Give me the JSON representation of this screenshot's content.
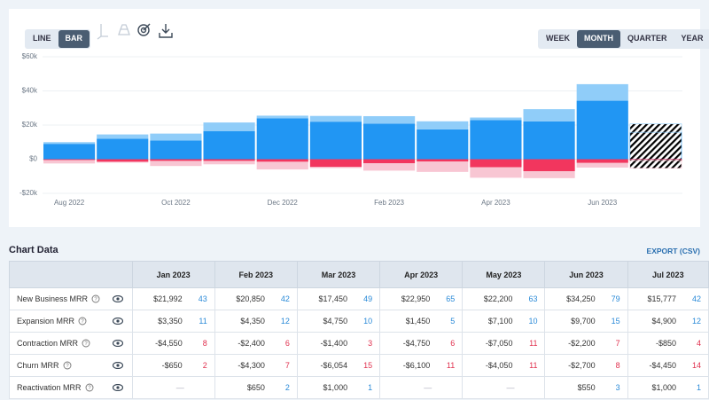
{
  "toolbar": {
    "chart_types": [
      "LINE",
      "BAR"
    ],
    "active_chart_type": 1,
    "periods": [
      "WEEK",
      "MONTH",
      "QUARTER",
      "YEAR"
    ],
    "active_period": 1
  },
  "chart_data": {
    "type": "bar",
    "stacked": true,
    "grid": true,
    "hatch_last": true,
    "categories": [
      "Aug 2022",
      null,
      "Oct 2022",
      null,
      "Dec 2022",
      null,
      "Feb 2023",
      null,
      "Apr 2023",
      null,
      "Jun 2023",
      null
    ],
    "series": [
      {
        "color": "#2196f3",
        "values": [
          9000,
          12000,
          11000,
          16500,
          24000,
          21992,
          20850,
          17450,
          22950,
          22200,
          34250,
          15777
        ]
      },
      {
        "color": "#90cdf9",
        "values": [
          1000,
          2500,
          4000,
          5000,
          1500,
          3350,
          4350,
          4750,
          1450,
          7100,
          9700,
          4900
        ]
      },
      {
        "color": "#f2365e",
        "values": [
          -500,
          -1500,
          -1000,
          -1000,
          -1500,
          -4550,
          -2400,
          -1400,
          -4750,
          -7050,
          -2200,
          -850
        ]
      },
      {
        "color": "#f8c6d3",
        "values": [
          -2000,
          -500,
          -3000,
          -2000,
          -4500,
          -650,
          -4300,
          -6054,
          -6100,
          -4050,
          -2700,
          -4450
        ]
      }
    ],
    "ylim": [
      -20000,
      60000
    ],
    "yticks": [
      {
        "value": -20000,
        "label": "-$20k"
      },
      {
        "value": 0,
        "label": "$0"
      },
      {
        "value": 20000,
        "label": "$20k"
      },
      {
        "value": 40000,
        "label": "$40k"
      },
      {
        "value": 60000,
        "label": "$60k"
      }
    ]
  },
  "table": {
    "title": "Chart Data",
    "export": "EXPORT (CSV)",
    "columns": [
      "Jan 2023",
      "Feb 2023",
      "Mar 2023",
      "Apr 2023",
      "May 2023",
      "Jun 2023",
      "Jul 2023"
    ],
    "rows": [
      {
        "name": "New Business MRR",
        "count_color": "#2a8ad8",
        "cells": [
          {
            "amount": "$21,992",
            "count": 43
          },
          {
            "amount": "$20,850",
            "count": 42
          },
          {
            "amount": "$17,450",
            "count": 49
          },
          {
            "amount": "$22,950",
            "count": 65
          },
          {
            "amount": "$22,200",
            "count": 63
          },
          {
            "amount": "$34,250",
            "count": 79
          },
          {
            "amount": "$15,777",
            "count": 42
          }
        ]
      },
      {
        "name": "Expansion MRR",
        "count_color": "#2a8ad8",
        "cells": [
          {
            "amount": "$3,350",
            "count": 11
          },
          {
            "amount": "$4,350",
            "count": 12
          },
          {
            "amount": "$4,750",
            "count": 10
          },
          {
            "amount": "$1,450",
            "count": 5
          },
          {
            "amount": "$7,100",
            "count": 10
          },
          {
            "amount": "$9,700",
            "count": 15
          },
          {
            "amount": "$4,900",
            "count": 12
          }
        ]
      },
      {
        "name": "Contraction MRR",
        "count_color": "#e0304e",
        "cells": [
          {
            "amount": "-$4,550",
            "count": 8
          },
          {
            "amount": "-$2,400",
            "count": 6
          },
          {
            "amount": "-$1,400",
            "count": 3
          },
          {
            "amount": "-$4,750",
            "count": 6
          },
          {
            "amount": "-$7,050",
            "count": 11
          },
          {
            "amount": "-$2,200",
            "count": 7
          },
          {
            "amount": "-$850",
            "count": 4
          }
        ]
      },
      {
        "name": "Churn MRR",
        "count_color": "#e0304e",
        "cells": [
          {
            "amount": "-$650",
            "count": 2
          },
          {
            "amount": "-$4,300",
            "count": 7
          },
          {
            "amount": "-$6,054",
            "count": 15
          },
          {
            "amount": "-$6,100",
            "count": 11
          },
          {
            "amount": "-$4,050",
            "count": 11
          },
          {
            "amount": "-$2,700",
            "count": 8
          },
          {
            "amount": "-$4,450",
            "count": 14
          }
        ]
      },
      {
        "name": "Reactivation MRR",
        "count_color": "#2a8ad8",
        "cells": [
          {
            "amount": "—"
          },
          {
            "amount": "$650",
            "count": 2
          },
          {
            "amount": "$1,000",
            "count": 1
          },
          {
            "amount": "—"
          },
          {
            "amount": "—"
          },
          {
            "amount": "$550",
            "count": 3
          },
          {
            "amount": "$1,000",
            "count": 1
          }
        ]
      }
    ]
  }
}
